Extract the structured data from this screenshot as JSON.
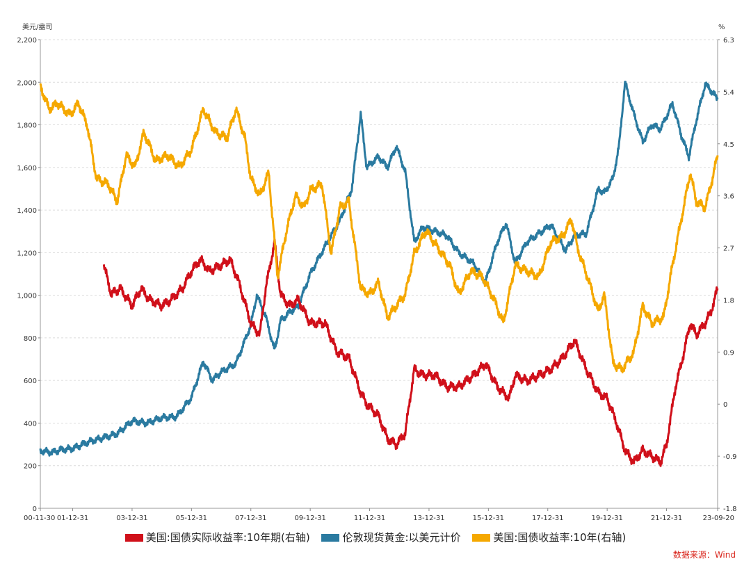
{
  "chart_data": {
    "type": "line",
    "title": "",
    "y_left_label": "美元/盎司",
    "y_right_label": "%",
    "y_left_range": [
      0,
      2200
    ],
    "y_left_ticks": [
      "0",
      "200",
      "400",
      "600",
      "800",
      "1,000",
      "1,200",
      "1,400",
      "1,600",
      "1,800",
      "2,000",
      "2,200"
    ],
    "y_right_range": [
      -1.8,
      6.3
    ],
    "y_right_ticks": [
      "-1.8",
      "-0.9",
      "0",
      "0.9",
      "1.8",
      "2.7",
      "3.6",
      "4.5",
      "5.4",
      "6.3"
    ],
    "x_range": [
      2000.91,
      2023.72
    ],
    "x_ticks": [
      {
        "label": "00-11-30",
        "x": 2000.91
      },
      {
        "label": "01-12-31",
        "x": 2002.0
      },
      {
        "label": "03-12-31",
        "x": 2004.0
      },
      {
        "label": "05-12-31",
        "x": 2006.0
      },
      {
        "label": "07-12-31",
        "x": 2008.0
      },
      {
        "label": "09-12-31",
        "x": 2010.0
      },
      {
        "label": "11-12-31",
        "x": 2012.0
      },
      {
        "label": "13-12-31",
        "x": 2014.0
      },
      {
        "label": "15-12-31",
        "x": 2016.0
      },
      {
        "label": "17-12-31",
        "x": 2018.0
      },
      {
        "label": "19-12-31",
        "x": 2020.0
      },
      {
        "label": "21-12-31",
        "x": 2022.0
      },
      {
        "label": "23-09-20",
        "x": 2023.72
      }
    ],
    "series": [
      {
        "name": "伦敦现货黄金:以美元计价",
        "axis": "left",
        "color": "#2a7aa0",
        "points": [
          [
            2000.91,
            270
          ],
          [
            2001.3,
            262
          ],
          [
            2001.6,
            275
          ],
          [
            2002.0,
            280
          ],
          [
            2002.5,
            310
          ],
          [
            2003.0,
            330
          ],
          [
            2003.5,
            350
          ],
          [
            2004.0,
            410
          ],
          [
            2004.5,
            400
          ],
          [
            2005.0,
            425
          ],
          [
            2005.5,
            430
          ],
          [
            2006.0,
            520
          ],
          [
            2006.4,
            690
          ],
          [
            2006.7,
            600
          ],
          [
            2007.0,
            640
          ],
          [
            2007.5,
            680
          ],
          [
            2008.0,
            860
          ],
          [
            2008.2,
            1000
          ],
          [
            2008.5,
            900
          ],
          [
            2008.8,
            740
          ],
          [
            2009.0,
            880
          ],
          [
            2009.3,
            920
          ],
          [
            2009.6,
            950
          ],
          [
            2010.0,
            1100
          ],
          [
            2010.5,
            1230
          ],
          [
            2011.0,
            1350
          ],
          [
            2011.4,
            1500
          ],
          [
            2011.7,
            1850
          ],
          [
            2011.9,
            1600
          ],
          [
            2012.3,
            1650
          ],
          [
            2012.6,
            1600
          ],
          [
            2012.9,
            1700
          ],
          [
            2013.2,
            1580
          ],
          [
            2013.5,
            1250
          ],
          [
            2013.8,
            1320
          ],
          [
            2014.2,
            1300
          ],
          [
            2014.6,
            1280
          ],
          [
            2015.0,
            1200
          ],
          [
            2015.5,
            1150
          ],
          [
            2015.9,
            1060
          ],
          [
            2016.3,
            1250
          ],
          [
            2016.6,
            1340
          ],
          [
            2016.9,
            1150
          ],
          [
            2017.3,
            1250
          ],
          [
            2017.7,
            1290
          ],
          [
            2018.1,
            1330
          ],
          [
            2018.6,
            1210
          ],
          [
            2018.9,
            1280
          ],
          [
            2019.3,
            1290
          ],
          [
            2019.7,
            1500
          ],
          [
            2019.9,
            1480
          ],
          [
            2020.2,
            1550
          ],
          [
            2020.4,
            1700
          ],
          [
            2020.6,
            2000
          ],
          [
            2020.9,
            1850
          ],
          [
            2021.2,
            1720
          ],
          [
            2021.5,
            1800
          ],
          [
            2021.8,
            1780
          ],
          [
            2022.2,
            1900
          ],
          [
            2022.5,
            1750
          ],
          [
            2022.75,
            1650
          ],
          [
            2023.0,
            1820
          ],
          [
            2023.3,
            1990
          ],
          [
            2023.45,
            1970
          ],
          [
            2023.72,
            1920
          ]
        ]
      },
      {
        "name": "美国:国债实际收益率:10年期(右轴)",
        "axis": "right",
        "color": "#d0101a",
        "points": [
          [
            2003.05,
            2.4
          ],
          [
            2003.3,
            1.9
          ],
          [
            2003.6,
            2.0
          ],
          [
            2004.0,
            1.7
          ],
          [
            2004.3,
            2.0
          ],
          [
            2004.6,
            1.8
          ],
          [
            2005.0,
            1.7
          ],
          [
            2005.3,
            1.8
          ],
          [
            2005.7,
            2.0
          ],
          [
            2006.0,
            2.3
          ],
          [
            2006.3,
            2.5
          ],
          [
            2006.6,
            2.3
          ],
          [
            2007.0,
            2.4
          ],
          [
            2007.3,
            2.5
          ],
          [
            2007.6,
            2.1
          ],
          [
            2008.0,
            1.4
          ],
          [
            2008.3,
            1.2
          ],
          [
            2008.5,
            2.0
          ],
          [
            2008.8,
            2.8
          ],
          [
            2009.0,
            1.9
          ],
          [
            2009.3,
            1.7
          ],
          [
            2009.6,
            1.8
          ],
          [
            2010.0,
            1.4
          ],
          [
            2010.5,
            1.4
          ],
          [
            2010.9,
            0.9
          ],
          [
            2011.3,
            0.8
          ],
          [
            2011.7,
            0.2
          ],
          [
            2011.9,
            0.0
          ],
          [
            2012.3,
            -0.2
          ],
          [
            2012.6,
            -0.6
          ],
          [
            2012.9,
            -0.7
          ],
          [
            2013.2,
            -0.5
          ],
          [
            2013.5,
            0.6
          ],
          [
            2013.8,
            0.5
          ],
          [
            2014.2,
            0.5
          ],
          [
            2014.6,
            0.3
          ],
          [
            2015.0,
            0.3
          ],
          [
            2015.5,
            0.5
          ],
          [
            2015.9,
            0.7
          ],
          [
            2016.3,
            0.3
          ],
          [
            2016.7,
            0.1
          ],
          [
            2016.9,
            0.5
          ],
          [
            2017.3,
            0.4
          ],
          [
            2017.7,
            0.5
          ],
          [
            2018.1,
            0.6
          ],
          [
            2018.5,
            0.8
          ],
          [
            2018.9,
            1.1
          ],
          [
            2019.3,
            0.6
          ],
          [
            2019.7,
            0.2
          ],
          [
            2020.0,
            0.1
          ],
          [
            2020.3,
            -0.3
          ],
          [
            2020.6,
            -0.8
          ],
          [
            2020.9,
            -1.0
          ],
          [
            2021.2,
            -0.8
          ],
          [
            2021.5,
            -0.9
          ],
          [
            2021.8,
            -1.0
          ],
          [
            2022.0,
            -0.7
          ],
          [
            2022.3,
            0.3
          ],
          [
            2022.5,
            0.7
          ],
          [
            2022.8,
            1.4
          ],
          [
            2023.0,
            1.2
          ],
          [
            2023.3,
            1.4
          ],
          [
            2023.5,
            1.6
          ],
          [
            2023.72,
            2.0
          ]
        ]
      },
      {
        "name": "美国:国债收益率:10年(右轴)",
        "axis": "right",
        "color": "#f5a800",
        "points": [
          [
            2000.91,
            5.5
          ],
          [
            2001.2,
            5.1
          ],
          [
            2001.5,
            5.2
          ],
          [
            2001.9,
            5.0
          ],
          [
            2002.2,
            5.2
          ],
          [
            2002.5,
            4.8
          ],
          [
            2002.8,
            3.9
          ],
          [
            2003.2,
            3.8
          ],
          [
            2003.5,
            3.5
          ],
          [
            2003.8,
            4.3
          ],
          [
            2004.1,
            4.1
          ],
          [
            2004.4,
            4.7
          ],
          [
            2004.8,
            4.2
          ],
          [
            2005.2,
            4.3
          ],
          [
            2005.6,
            4.1
          ],
          [
            2006.0,
            4.4
          ],
          [
            2006.4,
            5.1
          ],
          [
            2006.8,
            4.7
          ],
          [
            2007.2,
            4.6
          ],
          [
            2007.5,
            5.1
          ],
          [
            2007.8,
            4.6
          ],
          [
            2008.0,
            3.9
          ],
          [
            2008.3,
            3.6
          ],
          [
            2008.6,
            4.0
          ],
          [
            2008.9,
            2.2
          ],
          [
            2009.2,
            3.0
          ],
          [
            2009.5,
            3.6
          ],
          [
            2009.8,
            3.4
          ],
          [
            2010.0,
            3.7
          ],
          [
            2010.4,
            3.8
          ],
          [
            2010.7,
            2.6
          ],
          [
            2011.0,
            3.4
          ],
          [
            2011.3,
            3.5
          ],
          [
            2011.7,
            2.0
          ],
          [
            2012.0,
            1.9
          ],
          [
            2012.3,
            2.1
          ],
          [
            2012.6,
            1.5
          ],
          [
            2012.9,
            1.7
          ],
          [
            2013.2,
            1.9
          ],
          [
            2013.5,
            2.6
          ],
          [
            2013.9,
            3.0
          ],
          [
            2014.3,
            2.7
          ],
          [
            2014.7,
            2.4
          ],
          [
            2015.0,
            1.9
          ],
          [
            2015.4,
            2.3
          ],
          [
            2015.8,
            2.2
          ],
          [
            2016.2,
            1.8
          ],
          [
            2016.5,
            1.4
          ],
          [
            2016.9,
            2.4
          ],
          [
            2017.3,
            2.3
          ],
          [
            2017.7,
            2.2
          ],
          [
            2018.1,
            2.8
          ],
          [
            2018.5,
            2.9
          ],
          [
            2018.8,
            3.2
          ],
          [
            2019.0,
            2.7
          ],
          [
            2019.4,
            2.1
          ],
          [
            2019.7,
            1.6
          ],
          [
            2019.9,
            1.9
          ],
          [
            2020.2,
            0.7
          ],
          [
            2020.5,
            0.6
          ],
          [
            2020.9,
            0.9
          ],
          [
            2021.2,
            1.7
          ],
          [
            2021.5,
            1.4
          ],
          [
            2021.9,
            1.5
          ],
          [
            2022.2,
            2.4
          ],
          [
            2022.5,
            3.2
          ],
          [
            2022.8,
            4.0
          ],
          [
            2023.0,
            3.5
          ],
          [
            2023.3,
            3.4
          ],
          [
            2023.5,
            3.8
          ],
          [
            2023.72,
            4.3
          ]
        ]
      }
    ]
  },
  "legend": [
    {
      "label": "美国:国债实际收益率:10年期(右轴)",
      "color": "#d0101a"
    },
    {
      "label": "伦敦现货黄金:以美元计价",
      "color": "#2a7aa0"
    },
    {
      "label": "美国:国债收益率:10年(右轴)",
      "color": "#f5a800"
    }
  ],
  "source": "数据来源：Wind"
}
